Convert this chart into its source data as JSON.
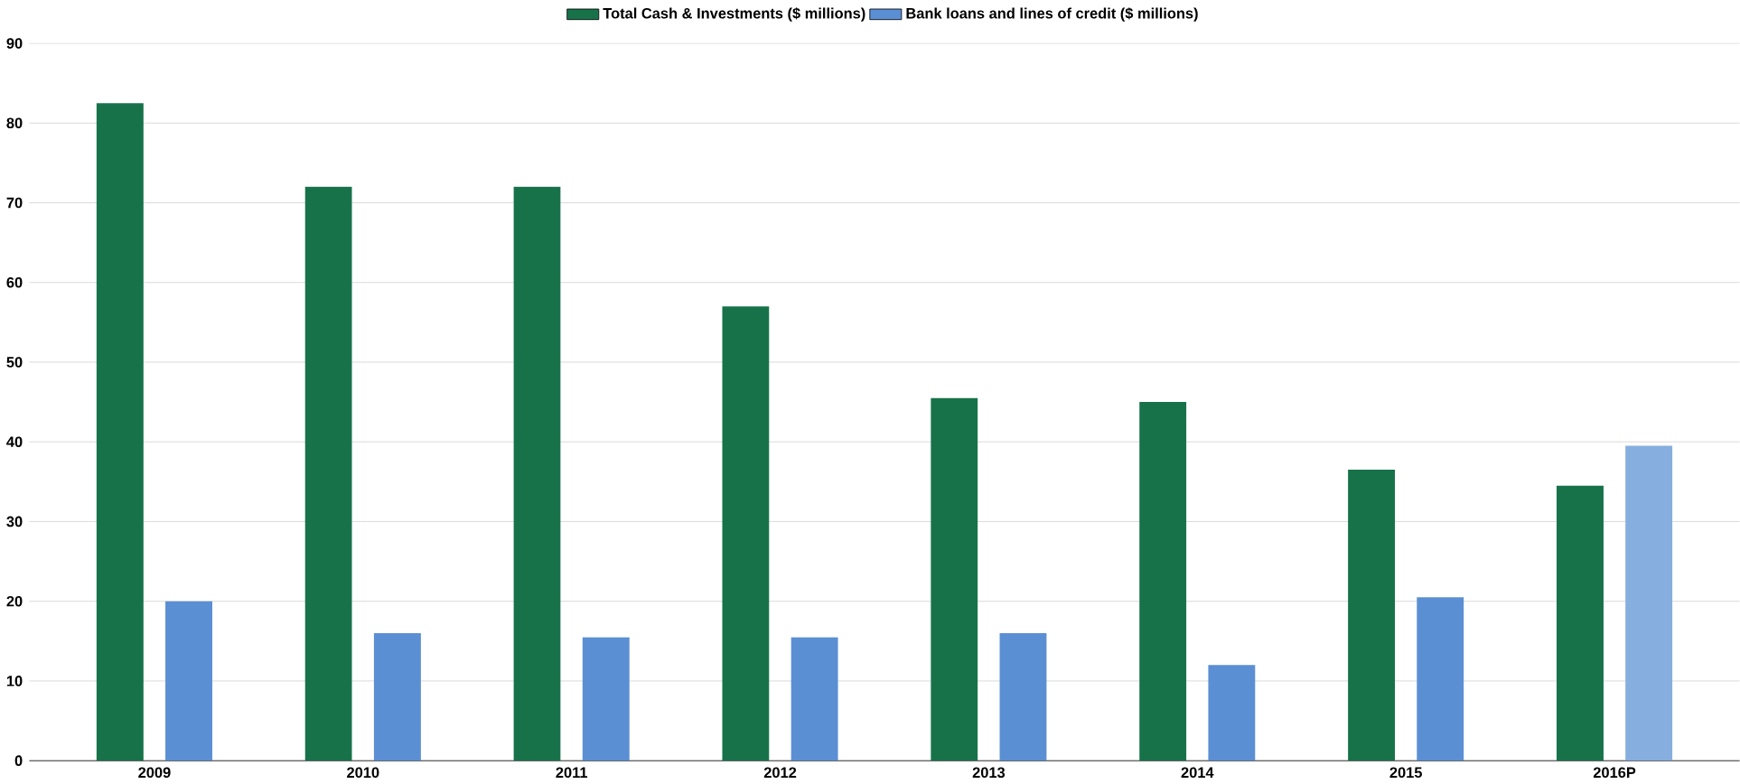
{
  "chart_data": {
    "type": "bar",
    "categories": [
      "2009",
      "2010",
      "2011",
      "2012",
      "2013",
      "2014",
      "2015",
      "2016P"
    ],
    "series": [
      {
        "name": "Total Cash & Investments ($ millions)",
        "color": "#17724a",
        "values": [
          82.5,
          72,
          72,
          57,
          45.5,
          45,
          36.5,
          34.5
        ]
      },
      {
        "name": "Bank loans and lines of credit ($ millions)",
        "color": "#5b8fd4",
        "colors": [
          "#5b8fd4",
          "#5b8fd4",
          "#5b8fd4",
          "#5b8fd4",
          "#5b8fd4",
          "#5b8fd4",
          "#5b8fd4",
          "#86aede"
        ],
        "values": [
          20,
          16,
          15.5,
          15.5,
          16,
          12,
          20.5,
          39.5
        ]
      }
    ],
    "ylim": [
      0,
      90
    ],
    "yticks": [
      0,
      10,
      20,
      30,
      40,
      50,
      60,
      70,
      80,
      90
    ],
    "grid": "y",
    "legend": "top"
  }
}
